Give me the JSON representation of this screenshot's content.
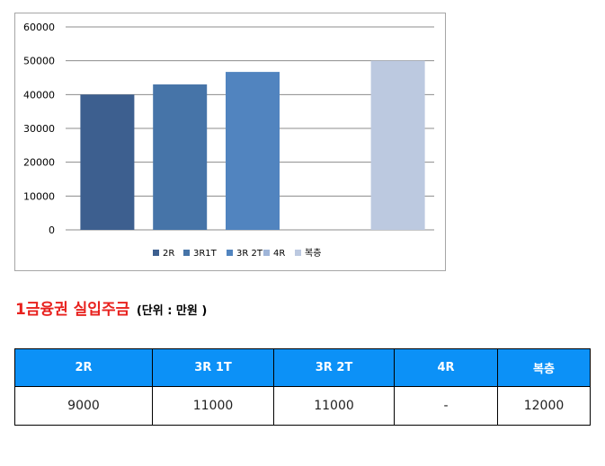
{
  "chart_data": {
    "type": "bar",
    "categories": [
      "2R",
      "3R1T",
      "3R 2T",
      "4R",
      "복층"
    ],
    "values": [
      40000,
      43000,
      46700,
      null,
      50000
    ],
    "colors": [
      "#3d5f8f",
      "#4674a8",
      "#5184bf",
      "#9fb5d8",
      "#bcc9e0"
    ],
    "ylim": [
      0,
      60000
    ],
    "yticks": [
      0,
      10000,
      20000,
      30000,
      40000,
      50000,
      60000
    ],
    "grid": true,
    "legend": "bottom"
  },
  "heading": {
    "main": "1금융권 실입주금",
    "unit": "(단위 : 만원 )"
  },
  "table": {
    "headers": [
      "2R",
      "3R 1T",
      "3R 2T",
      "4R",
      "복층"
    ],
    "row": [
      "9000",
      "11000",
      "11000",
      "-",
      "12000"
    ]
  }
}
